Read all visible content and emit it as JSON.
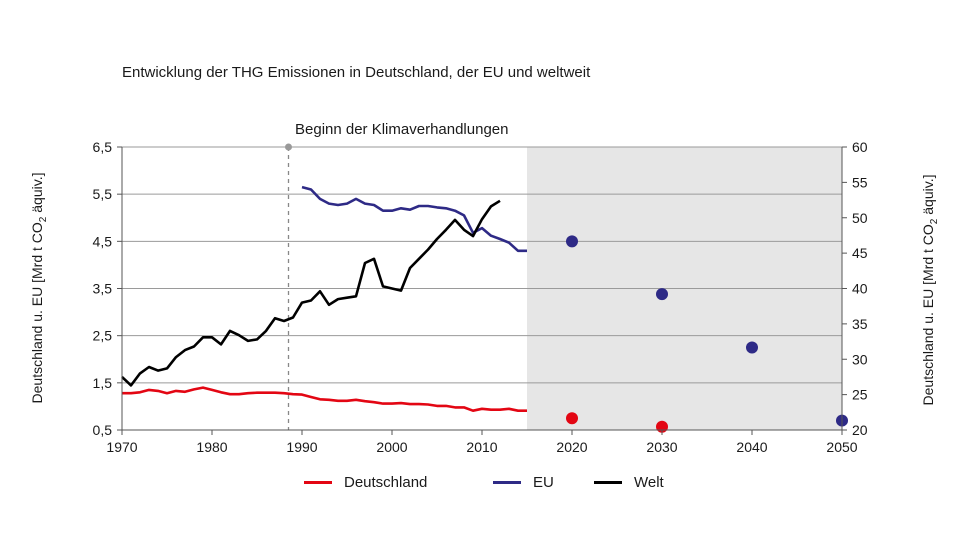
{
  "chart_data": {
    "type": "line",
    "title": "Entwicklung der THG Emissionen in Deutschland, der EU und weltweit",
    "annotation": {
      "label": "Beginn der Klimaverhandlungen",
      "x": 1988.5
    },
    "shaded_region": {
      "x_from": 2015,
      "x_to": 2050,
      "color": "#e6e6e6"
    },
    "xlim": [
      1970,
      2050
    ],
    "x_ticks": [
      1970,
      1980,
      1990,
      2000,
      2010,
      2020,
      2030,
      2040,
      2050
    ],
    "left_axis": {
      "label": "Deutschland u. EU [Mrd t CO₂ äquiv.]",
      "label_main": "Deutschland u. EU [Mrd t CO",
      "label_sub": "2",
      "label_tail": " äquiv.]",
      "ylim": [
        0.5,
        6.5
      ],
      "ticks": [
        "0,5",
        "1,5",
        "2,5",
        "3,5",
        "4,5",
        "5,5",
        "6,5"
      ]
    },
    "right_axis": {
      "label": "Deutschland u. EU [Mrd t CO₂ äquiv.]",
      "label_main": "Deutschland u. EU [Mrd t CO",
      "label_sub": "2",
      "label_tail": " äquiv.]",
      "ylim": [
        20,
        60
      ],
      "ticks": [
        "20",
        "25",
        "30",
        "35",
        "40",
        "45",
        "50",
        "55",
        "60"
      ]
    },
    "series": [
      {
        "name": "Deutschland",
        "color": "#e30613",
        "axis": "left",
        "x": [
          1970,
          1971,
          1972,
          1973,
          1974,
          1975,
          1976,
          1977,
          1978,
          1979,
          1980,
          1981,
          1982,
          1983,
          1984,
          1985,
          1986,
          1987,
          1988,
          1989,
          1990,
          1991,
          1992,
          1993,
          1994,
          1995,
          1996,
          1997,
          1998,
          1999,
          2000,
          2001,
          2002,
          2003,
          2004,
          2005,
          2006,
          2007,
          2008,
          2009,
          2010,
          2011,
          2012,
          2013,
          2014,
          2015
        ],
        "y": [
          1.28,
          1.28,
          1.3,
          1.35,
          1.33,
          1.28,
          1.33,
          1.31,
          1.36,
          1.4,
          1.35,
          1.3,
          1.26,
          1.26,
          1.28,
          1.29,
          1.29,
          1.29,
          1.28,
          1.26,
          1.25,
          1.2,
          1.15,
          1.14,
          1.12,
          1.12,
          1.14,
          1.11,
          1.09,
          1.06,
          1.06,
          1.07,
          1.05,
          1.05,
          1.04,
          1.01,
          1.01,
          0.98,
          0.98,
          0.91,
          0.95,
          0.93,
          0.93,
          0.95,
          0.91,
          0.91
        ],
        "projection": {
          "x": [
            2020,
            2030
          ],
          "y": [
            0.75,
            0.57
          ]
        }
      },
      {
        "name": "EU",
        "color": "#2e2a86",
        "axis": "left",
        "x": [
          1990,
          1991,
          1992,
          1993,
          1994,
          1995,
          1996,
          1997,
          1998,
          1999,
          2000,
          2001,
          2002,
          2003,
          2004,
          2005,
          2006,
          2007,
          2008,
          2009,
          2010,
          2011,
          2012,
          2013,
          2014,
          2015
        ],
        "y": [
          5.65,
          5.6,
          5.4,
          5.3,
          5.27,
          5.3,
          5.4,
          5.3,
          5.27,
          5.15,
          5.15,
          5.2,
          5.17,
          5.25,
          5.25,
          5.22,
          5.2,
          5.15,
          5.05,
          4.68,
          4.78,
          4.62,
          4.55,
          4.47,
          4.3,
          4.3
        ],
        "projection": {
          "x": [
            2020,
            2030,
            2040,
            2050
          ],
          "y": [
            4.5,
            3.38,
            2.25,
            0.7
          ]
        }
      },
      {
        "name": "Welt",
        "color": "#000000",
        "axis": "right",
        "x": [
          1970,
          1971,
          1972,
          1973,
          1974,
          1975,
          1976,
          1977,
          1978,
          1979,
          1980,
          1981,
          1982,
          1983,
          1984,
          1985,
          1986,
          1987,
          1988,
          1989,
          1990,
          1991,
          1992,
          1993,
          1994,
          1995,
          1996,
          1997,
          1998,
          1999,
          2000,
          2001,
          2002,
          2003,
          2004,
          2005,
          2006,
          2007,
          2008,
          2009,
          2010,
          2011,
          2012
        ],
        "y": [
          27.5,
          26.3,
          28.0,
          28.9,
          28.4,
          28.7,
          30.3,
          31.3,
          31.8,
          33.1,
          33.1,
          32.1,
          34.0,
          33.4,
          32.6,
          32.8,
          34.0,
          35.8,
          35.4,
          35.9,
          38.0,
          38.3,
          39.6,
          37.7,
          38.5,
          38.7,
          38.9,
          43.6,
          44.2,
          40.3,
          40.0,
          39.7,
          42.9,
          44.2,
          45.5,
          47.0,
          48.3,
          49.7,
          48.3,
          47.4,
          49.8,
          51.6,
          52.4
        ]
      }
    ],
    "legend": {
      "placement": "bottom",
      "entries": [
        "Deutschland",
        "EU",
        "Welt"
      ]
    },
    "grid": {
      "y": true,
      "x": false
    }
  }
}
